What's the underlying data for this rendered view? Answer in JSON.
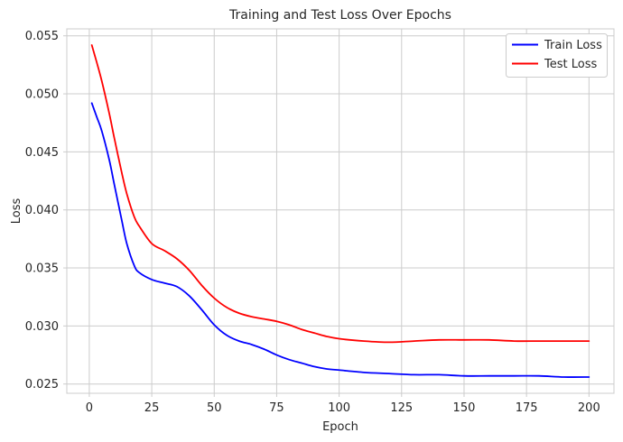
{
  "figure": {
    "title": "Training and Test Loss Over Epochs",
    "xlabel": "Epoch",
    "ylabel": "Loss",
    "background": "#ffffff",
    "text_color": "#262626",
    "grid_color": "#cccccc",
    "spine_color": "#cccccc"
  },
  "legend": {
    "position": "upper right",
    "items": [
      {
        "label": "Train Loss",
        "color": "#0000ff"
      },
      {
        "label": "Test Loss",
        "color": "#ff0000"
      }
    ]
  },
  "chart_data": {
    "type": "line",
    "title": "Training and Test Loss Over Epochs",
    "xlabel": "Epoch",
    "ylabel": "Loss",
    "grid": true,
    "legend_position": "upper right",
    "xlim": [
      -9,
      210
    ],
    "ylim": [
      0.0242,
      0.0556
    ],
    "xticks": [
      0,
      25,
      50,
      75,
      100,
      125,
      150,
      175,
      200
    ],
    "yticks": [
      0.025,
      0.03,
      0.035,
      0.04,
      0.045,
      0.05,
      0.055
    ],
    "x": [
      1,
      3,
      5,
      8,
      10,
      13,
      15,
      18,
      20,
      25,
      30,
      35,
      40,
      45,
      50,
      55,
      60,
      65,
      70,
      75,
      80,
      85,
      90,
      95,
      100,
      110,
      120,
      130,
      140,
      150,
      160,
      170,
      180,
      190,
      200
    ],
    "series": [
      {
        "name": "Train Loss",
        "color": "#0000ff",
        "values": [
          0.0492,
          0.048,
          0.0468,
          0.0443,
          0.0422,
          0.0391,
          0.0371,
          0.0352,
          0.0346,
          0.034,
          0.0337,
          0.0334,
          0.0326,
          0.0314,
          0.0301,
          0.0292,
          0.0287,
          0.0284,
          0.028,
          0.0275,
          0.0271,
          0.0268,
          0.0265,
          0.0263,
          0.0262,
          0.026,
          0.0259,
          0.0258,
          0.0258,
          0.0257,
          0.0257,
          0.0257,
          0.0257,
          0.0256,
          0.0256
        ]
      },
      {
        "name": "Test Loss",
        "color": "#ff0000",
        "values": [
          0.0542,
          0.0527,
          0.0511,
          0.0483,
          0.0462,
          0.0432,
          0.0414,
          0.0394,
          0.0386,
          0.0371,
          0.0365,
          0.0358,
          0.0348,
          0.0335,
          0.0324,
          0.0316,
          0.0311,
          0.0308,
          0.0306,
          0.0304,
          0.0301,
          0.0297,
          0.0294,
          0.0291,
          0.0289,
          0.0287,
          0.0286,
          0.0287,
          0.0288,
          0.0288,
          0.0288,
          0.0287,
          0.0287,
          0.0287,
          0.0287
        ]
      }
    ]
  }
}
